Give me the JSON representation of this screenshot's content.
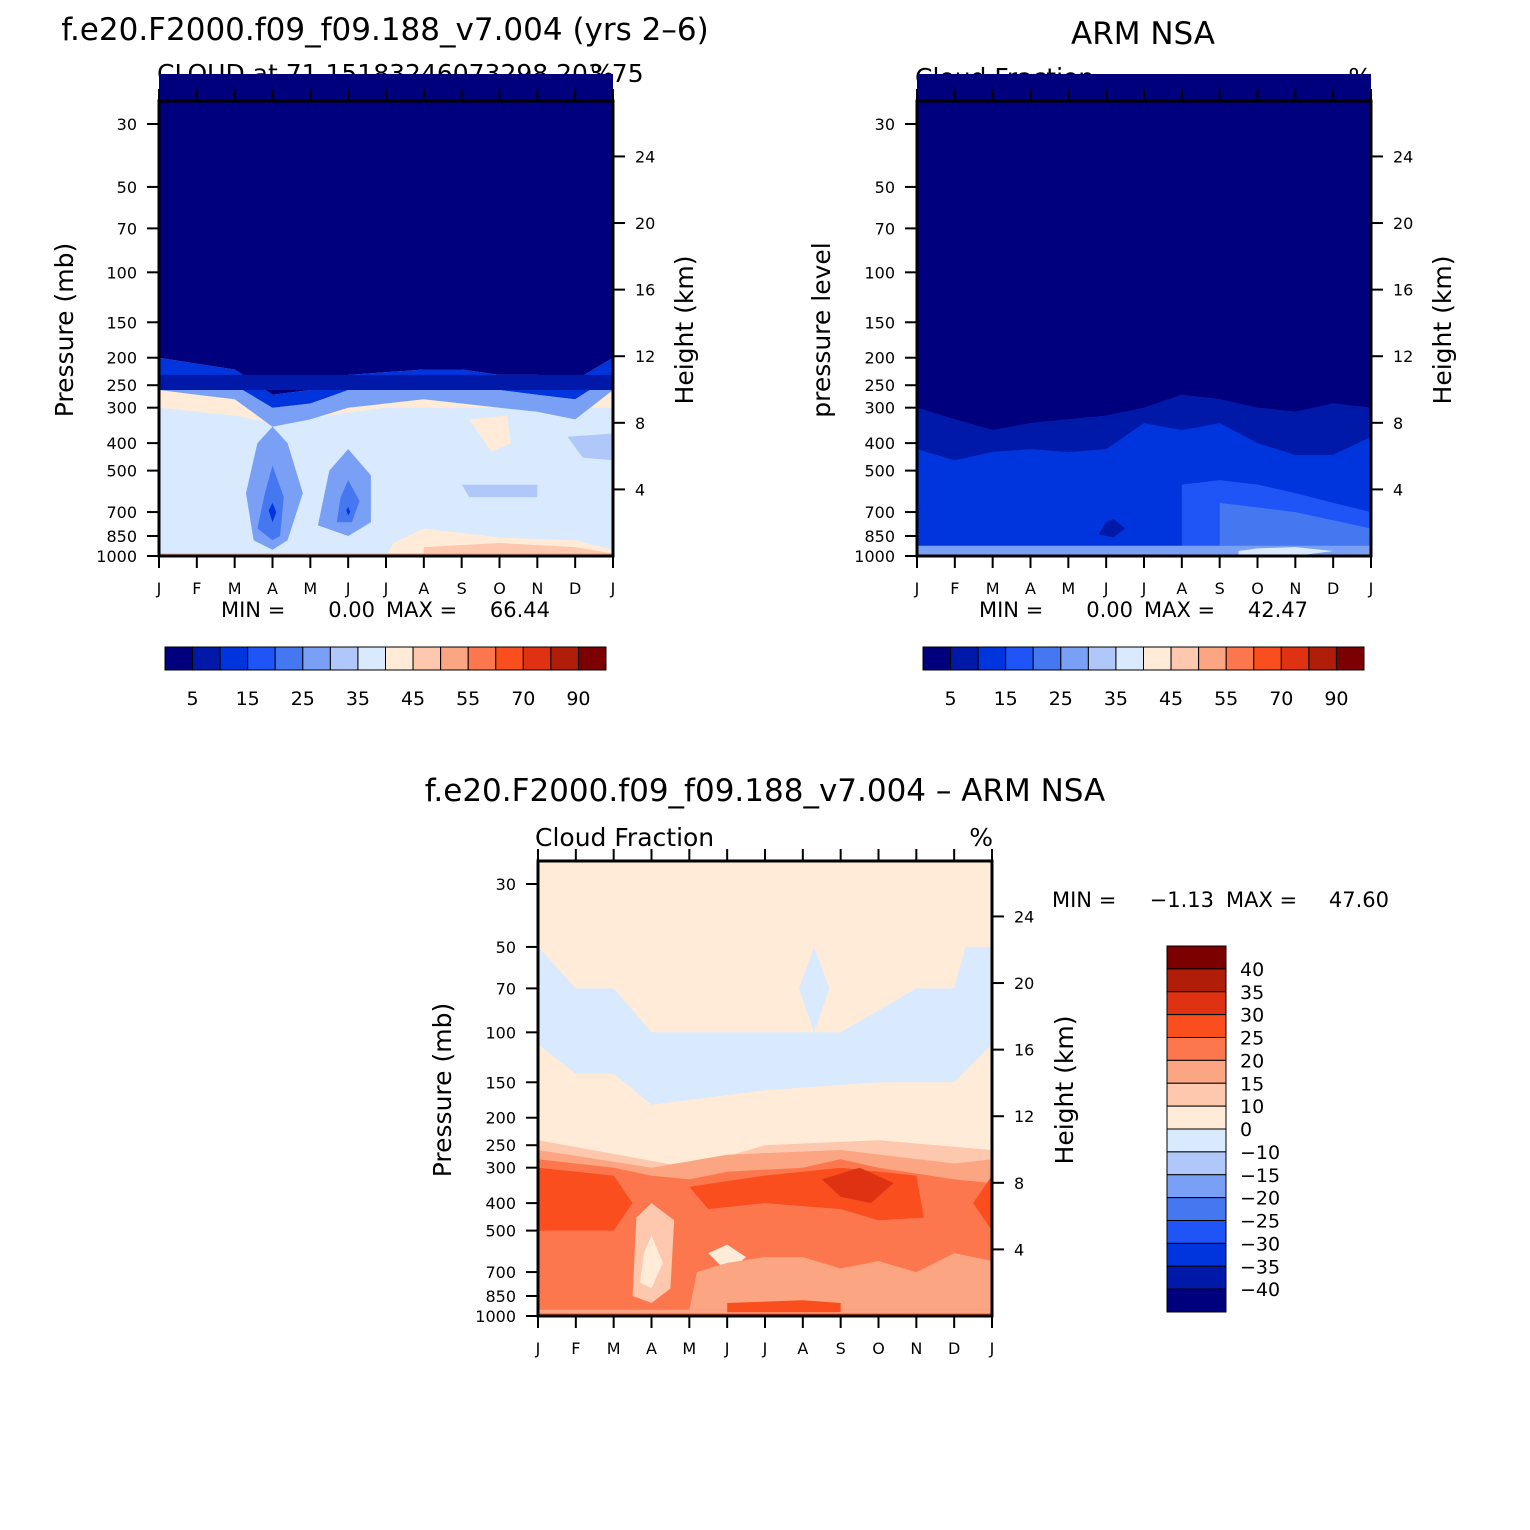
{
  "figure": {
    "title_left": "f.e20.F2000.f09_f09.188_v7.004 (yrs 2–6)",
    "title_right": "ARM NSA",
    "title_bottom": "f.e20.F2000.f09_f09.188_v7.004 – ARM NSA"
  },
  "colors": {
    "abs_levels": [
      "#00007f",
      "#0019a8",
      "#0034dc",
      "#1f55f7",
      "#4577f1",
      "#7aa0f5",
      "#b0c7f9",
      "#d9eafe",
      "#ffebd8",
      "#fdc8ad",
      "#fca582",
      "#fc774e",
      "#fa4e1f",
      "#df3212",
      "#b01e0a",
      "#7d0000"
    ],
    "diff_levels": [
      "#00007f",
      "#0019a8",
      "#0034dc",
      "#1f55f7",
      "#4577f1",
      "#7aa0f5",
      "#b0c7f9",
      "#d9eafe",
      "#ffebd8",
      "#fdc8ad",
      "#fca582",
      "#fc774e",
      "#fa4e1f",
      "#df3212",
      "#b01e0a",
      "#7d0000"
    ]
  },
  "chart_data": [
    {
      "type": "heatmap",
      "id": "model",
      "title": "CLOUD at 71.15183246073298,203.75",
      "title_right": "%",
      "ylabel": "Pressure (mb)",
      "y2label": "Height (km)",
      "x_ticklabels": [
        "J",
        "F",
        "M",
        "A",
        "M",
        "J",
        "J",
        "A",
        "S",
        "O",
        "N",
        "D",
        "J"
      ],
      "y_ticks": [
        30,
        50,
        70,
        100,
        150,
        200,
        250,
        300,
        400,
        500,
        700,
        850,
        1000
      ],
      "y2_ticks": [
        24,
        20,
        16,
        12,
        8,
        4
      ],
      "stats": {
        "min_label": "MIN =",
        "min": "0.00",
        "max_label": "MAX =",
        "max": "66.44"
      },
      "colorbar": {
        "labels": [
          "5",
          "15",
          "25",
          "35",
          "45",
          "55",
          "70",
          "90"
        ]
      },
      "z_columns": [
        {
          "month": "J",
          "boundaries_mb": [
            200,
            230,
            260,
            300,
            420
          ],
          "values": [
            5,
            10,
            15,
            25,
            35,
            40,
            45
          ]
        },
        {
          "month": "F",
          "boundaries_mb": [
            210,
            240,
            270,
            320
          ],
          "values": [
            5,
            10,
            15,
            25,
            40,
            45
          ]
        },
        {
          "month": "M",
          "boundaries_mb": [
            220,
            250,
            280,
            330
          ],
          "values": [
            5,
            10,
            15,
            25,
            35,
            45
          ]
        },
        {
          "month": "A",
          "boundaries_mb": [
            270,
            300,
            350
          ],
          "values": [
            5,
            10,
            20,
            25,
            15,
            45
          ]
        },
        {
          "month": "M",
          "boundaries_mb": [
            260,
            290,
            330
          ],
          "values": [
            5,
            10,
            20,
            30,
            25,
            45
          ]
        },
        {
          "month": "J",
          "boundaries_mb": [
            230,
            260,
            300
          ],
          "values": [
            5,
            10,
            15,
            30,
            20,
            45
          ]
        },
        {
          "month": "J",
          "boundaries_mb": [
            225,
            255,
            290
          ],
          "values": [
            5,
            10,
            15,
            35,
            40,
            45
          ]
        },
        {
          "month": "A",
          "boundaries_mb": [
            220,
            250,
            280
          ],
          "values": [
            5,
            10,
            15,
            35,
            38,
            45
          ]
        },
        {
          "month": "S",
          "boundaries_mb": [
            220,
            250,
            290
          ],
          "values": [
            5,
            10,
            15,
            35,
            40,
            45
          ]
        },
        {
          "month": "O",
          "boundaries_mb": [
            230,
            260,
            300
          ],
          "values": [
            5,
            10,
            15,
            30,
            35,
            45
          ]
        },
        {
          "month": "N",
          "boundaries_mb": [
            230,
            270,
            310
          ],
          "values": [
            5,
            10,
            15,
            30,
            35,
            45
          ]
        },
        {
          "month": "D",
          "boundaries_mb": [
            240,
            280,
            330
          ],
          "values": [
            5,
            10,
            15,
            25,
            35,
            45
          ]
        },
        {
          "month": "J",
          "boundaries_mb": [
            200,
            230,
            260,
            300,
            420
          ],
          "values": [
            5,
            10,
            15,
            25,
            35,
            40,
            45
          ]
        }
      ]
    },
    {
      "type": "heatmap",
      "id": "obs",
      "title": "Cloud Fraction",
      "title_right": "%",
      "ylabel": "pressure level",
      "y2label": "Height (km)",
      "x_ticklabels": [
        "J",
        "F",
        "M",
        "A",
        "M",
        "J",
        "J",
        "A",
        "S",
        "O",
        "N",
        "D",
        "J"
      ],
      "y_ticks": [
        30,
        50,
        70,
        100,
        150,
        200,
        250,
        300,
        400,
        500,
        700,
        850,
        1000
      ],
      "y2_ticks": [
        24,
        20,
        16,
        12,
        8,
        4
      ],
      "stats": {
        "min_label": "MIN =",
        "min": "0.00",
        "max_label": "MAX =",
        "max": "42.47"
      },
      "colorbar": {
        "labels": [
          "5",
          "15",
          "25",
          "35",
          "45",
          "55",
          "70",
          "90"
        ]
      }
    },
    {
      "type": "heatmap",
      "id": "diff",
      "title": "Cloud Fraction",
      "title_right": "%",
      "ylabel": "Pressure (mb)",
      "y2label": "Height (km)",
      "x_ticklabels": [
        "J",
        "F",
        "M",
        "A",
        "M",
        "J",
        "J",
        "A",
        "S",
        "O",
        "N",
        "D",
        "J"
      ],
      "y_ticks": [
        30,
        50,
        70,
        100,
        150,
        200,
        250,
        300,
        400,
        500,
        700,
        850,
        1000
      ],
      "y2_ticks": [
        24,
        20,
        16,
        12,
        8,
        4
      ],
      "stats": {
        "min_label": "MIN =",
        "min": "−1.13",
        "max_label": "MAX =",
        "max": "47.60"
      },
      "colorbar": {
        "labels": [
          "40",
          "35",
          "30",
          "25",
          "20",
          "15",
          "10",
          "0",
          "−10",
          "−15",
          "−20",
          "−25",
          "−30",
          "−35",
          "−40"
        ]
      }
    }
  ]
}
